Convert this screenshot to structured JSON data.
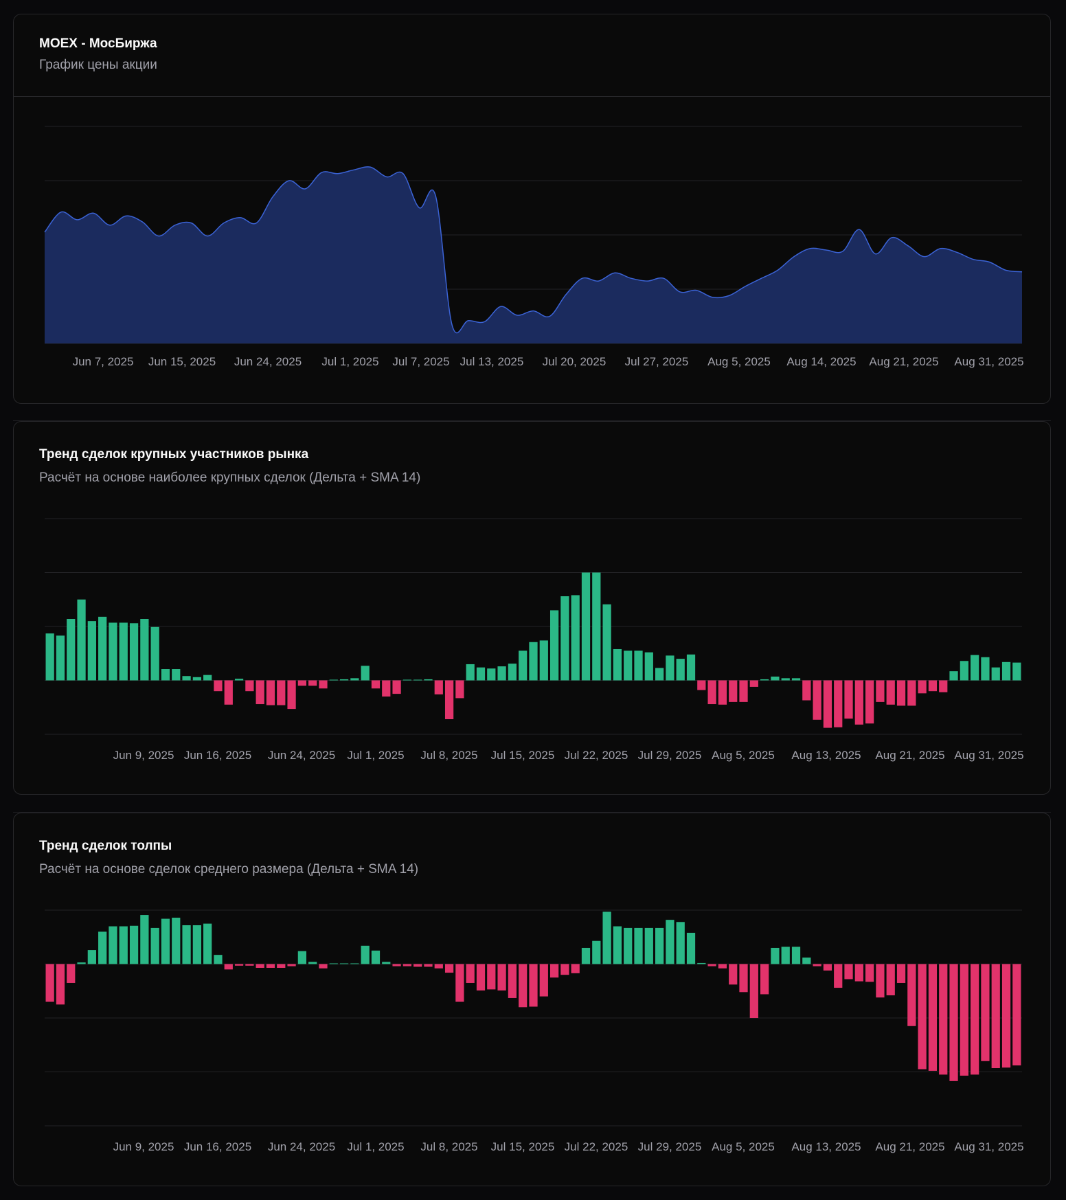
{
  "colors": {
    "area_fill": "#1b2b5e",
    "area_stroke": "#3b63d6",
    "positive": "#2bb887",
    "negative": "#e2336b",
    "grid": "#232326"
  },
  "cards": [
    {
      "title": "MOEX - МосБиржа",
      "subtitle": "График цены акции"
    },
    {
      "title": "Тренд сделок крупных участников рынка",
      "subtitle": "Расчёт на основе наиболее крупных сделок (Дельта + SMA 14)"
    },
    {
      "title": "Тренд сделок толпы",
      "subtitle": "Расчёт на основе сделок среднего размера (Дельта + SMA 14)"
    }
  ],
  "chart_data": [
    {
      "type": "area",
      "title": "MOEX - МосБиржа",
      "subtitle": "График цены акции",
      "x_tick_labels": [
        "Jun 7, 2025",
        "Jun 15, 2025",
        "Jun 24, 2025",
        "Jul 1, 2025",
        "Jul 7, 2025",
        "Jul 13, 2025",
        "Jul 20, 2025",
        "Jul 27, 2025",
        "Aug 5, 2025",
        "Aug 14, 2025",
        "Aug 21, 2025",
        "Aug 31, 2025"
      ],
      "ylim": [
        0,
        4
      ],
      "grid": true,
      "values": [
        2.05,
        2.42,
        2.28,
        2.4,
        2.18,
        2.35,
        2.24,
        1.98,
        2.18,
        2.22,
        1.98,
        2.22,
        2.32,
        2.22,
        2.7,
        3.0,
        2.85,
        3.15,
        3.13,
        3.2,
        3.25,
        3.07,
        3.13,
        2.5,
        2.72,
        0.35,
        0.42,
        0.4,
        0.68,
        0.52,
        0.6,
        0.5,
        0.9,
        1.2,
        1.15,
        1.3,
        1.2,
        1.15,
        1.2,
        0.95,
        0.98,
        0.85,
        0.88,
        1.05,
        1.2,
        1.35,
        1.6,
        1.75,
        1.72,
        1.7,
        2.1,
        1.65,
        1.95,
        1.8,
        1.6,
        1.75,
        1.68,
        1.55,
        1.5,
        1.35,
        1.32
      ]
    },
    {
      "type": "bar",
      "title": "Тренд сделок крупных участников рынка",
      "subtitle": "Расчёт на основе наиболее крупных сделок (Дельта + SMA 14)",
      "x_tick_labels": [
        "Jun 9, 2025",
        "Jun 16, 2025",
        "Jun 24, 2025",
        "Jul 1, 2025",
        "Jul 8, 2025",
        "Jul 15, 2025",
        "Jul 22, 2025",
        "Jul 29, 2025",
        "Aug 5, 2025",
        "Aug 13, 2025",
        "Aug 21, 2025",
        "Aug 31, 2025"
      ],
      "ylim": [
        -1,
        3
      ],
      "grid": true,
      "values": [
        0.87,
        0.83,
        1.14,
        1.5,
        1.1,
        1.18,
        1.07,
        1.07,
        1.06,
        1.14,
        0.99,
        0.21,
        0.21,
        0.08,
        0.06,
        0.1,
        -0.2,
        -0.45,
        0.03,
        -0.2,
        -0.44,
        -0.46,
        -0.46,
        -0.53,
        -0.1,
        -0.1,
        -0.15,
        0.0,
        0.02,
        0.04,
        0.27,
        -0.15,
        -0.3,
        -0.25,
        0.01,
        0.01,
        0.02,
        -0.26,
        -0.72,
        -0.33,
        0.3,
        0.24,
        0.22,
        0.26,
        0.31,
        0.55,
        0.71,
        0.74,
        1.3,
        1.56,
        1.58,
        2.0,
        2.0,
        1.41,
        0.58,
        0.55,
        0.55,
        0.52,
        0.23,
        0.46,
        0.4,
        0.48,
        -0.18,
        -0.44,
        -0.45,
        -0.4,
        -0.4,
        -0.12,
        0.02,
        0.07,
        0.04,
        0.04,
        -0.37,
        -0.73,
        -0.88,
        -0.87,
        -0.71,
        -0.82,
        -0.8,
        -0.4,
        -0.45,
        -0.47,
        -0.47,
        -0.24,
        -0.2,
        -0.22,
        0.17,
        0.36,
        0.47,
        0.43,
        0.24,
        0.34,
        0.33
      ]
    },
    {
      "type": "bar",
      "title": "Тренд сделок толпы",
      "subtitle": "Расчёт на основе сделок среднего размера (Дельта + SMA 14)",
      "x_tick_labels": [
        "Jun 9, 2025",
        "Jun 16, 2025",
        "Jun 24, 2025",
        "Jul 1, 2025",
        "Jul 8, 2025",
        "Jul 15, 2025",
        "Jul 22, 2025",
        "Jul 29, 2025",
        "Aug 5, 2025",
        "Aug 13, 2025",
        "Aug 21, 2025",
        "Aug 31, 2025"
      ],
      "ylim": [
        -3,
        1
      ],
      "grid": true,
      "values": [
        -0.7,
        -0.75,
        -0.35,
        0.03,
        0.26,
        0.6,
        0.7,
        0.7,
        0.71,
        0.91,
        0.67,
        0.84,
        0.86,
        0.72,
        0.72,
        0.75,
        0.17,
        -0.1,
        -0.03,
        -0.03,
        -0.07,
        -0.07,
        -0.07,
        -0.04,
        0.24,
        0.04,
        -0.08,
        0.0,
        0.0,
        0.0,
        0.34,
        0.25,
        0.04,
        -0.04,
        -0.04,
        -0.05,
        -0.05,
        -0.08,
        -0.16,
        -0.7,
        -0.35,
        -0.49,
        -0.47,
        -0.49,
        -0.63,
        -0.8,
        -0.79,
        -0.6,
        -0.25,
        -0.2,
        -0.17,
        0.3,
        0.43,
        0.97,
        0.7,
        0.67,
        0.67,
        0.67,
        0.67,
        0.82,
        0.78,
        0.58,
        0.02,
        -0.04,
        -0.08,
        -0.38,
        -0.52,
        -1.0,
        -0.56,
        0.3,
        0.32,
        0.32,
        0.12,
        -0.04,
        -0.12,
        -0.44,
        -0.28,
        -0.32,
        -0.33,
        -0.62,
        -0.58,
        -0.35,
        -1.15,
        -1.95,
        -1.98,
        -2.05,
        -2.17,
        -2.07,
        -2.05,
        -1.8,
        -1.93,
        -1.92,
        -1.88
      ]
    }
  ]
}
